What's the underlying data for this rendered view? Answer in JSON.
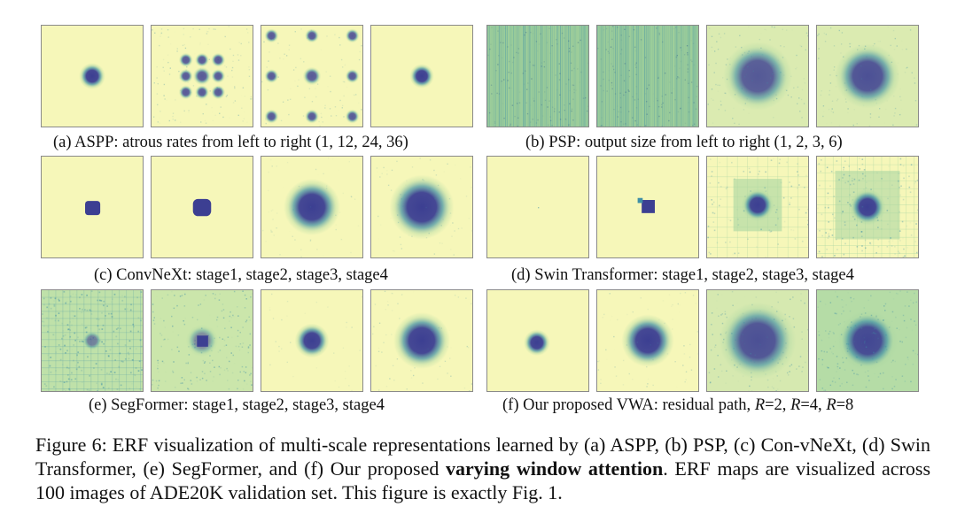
{
  "panels": [
    {
      "id": "a",
      "caption": "(a) ASPP: atrous rates from left to right (1, 12, 24, 36)",
      "tiles": [
        "aspp-rate-1",
        "aspp-rate-12",
        "aspp-rate-24",
        "aspp-rate-36"
      ]
    },
    {
      "id": "b",
      "caption": "(b) PSP: output size from left to right (1, 2, 3, 6)",
      "tiles": [
        "psp-size-1",
        "psp-size-2",
        "psp-size-3",
        "psp-size-6"
      ]
    },
    {
      "id": "c",
      "caption": "(c) ConvNeXt: stage1, stage2, stage3, stage4",
      "tiles": [
        "convnext-stage1",
        "convnext-stage2",
        "convnext-stage3",
        "convnext-stage4"
      ]
    },
    {
      "id": "d",
      "caption": "(d) Swin Transformer: stage1, stage2, stage3, stage4",
      "tiles": [
        "swin-stage1",
        "swin-stage2",
        "swin-stage3",
        "swin-stage4"
      ]
    },
    {
      "id": "e",
      "caption": "(e) SegFormer: stage1, stage2, stage3, stage4",
      "tiles": [
        "segformer-stage1",
        "segformer-stage2",
        "segformer-stage3",
        "segformer-stage4"
      ]
    },
    {
      "id": "f",
      "caption_parts": {
        "prefix": "(f) Our proposed VWA: residual path, ",
        "r1": "R",
        "v1": "=2, ",
        "r2": "R",
        "v2": "=4, ",
        "r3": "R",
        "v3": "=8"
      },
      "tiles": [
        "vwa-residual",
        "vwa-r2",
        "vwa-r4",
        "vwa-r8"
      ]
    }
  ],
  "figure_caption": {
    "lead": "Figure 6: ERF visualization of multi-scale representations learned by (a) ASPP, (b) PSP, (c) Con-vNeXt, (d) Swin Transformer, (e) SegFormer, and (f) Our proposed ",
    "emphasis": "varying window attention",
    "tail": ". ERF maps are visualized across 100 images of ADE20K validation set. This figure is exactly Fig. 1."
  },
  "colors": {
    "background": "#f6f7b9",
    "dark": "#3c3f92",
    "mid": "#3f8fa6",
    "light": "#a8d5a2"
  }
}
